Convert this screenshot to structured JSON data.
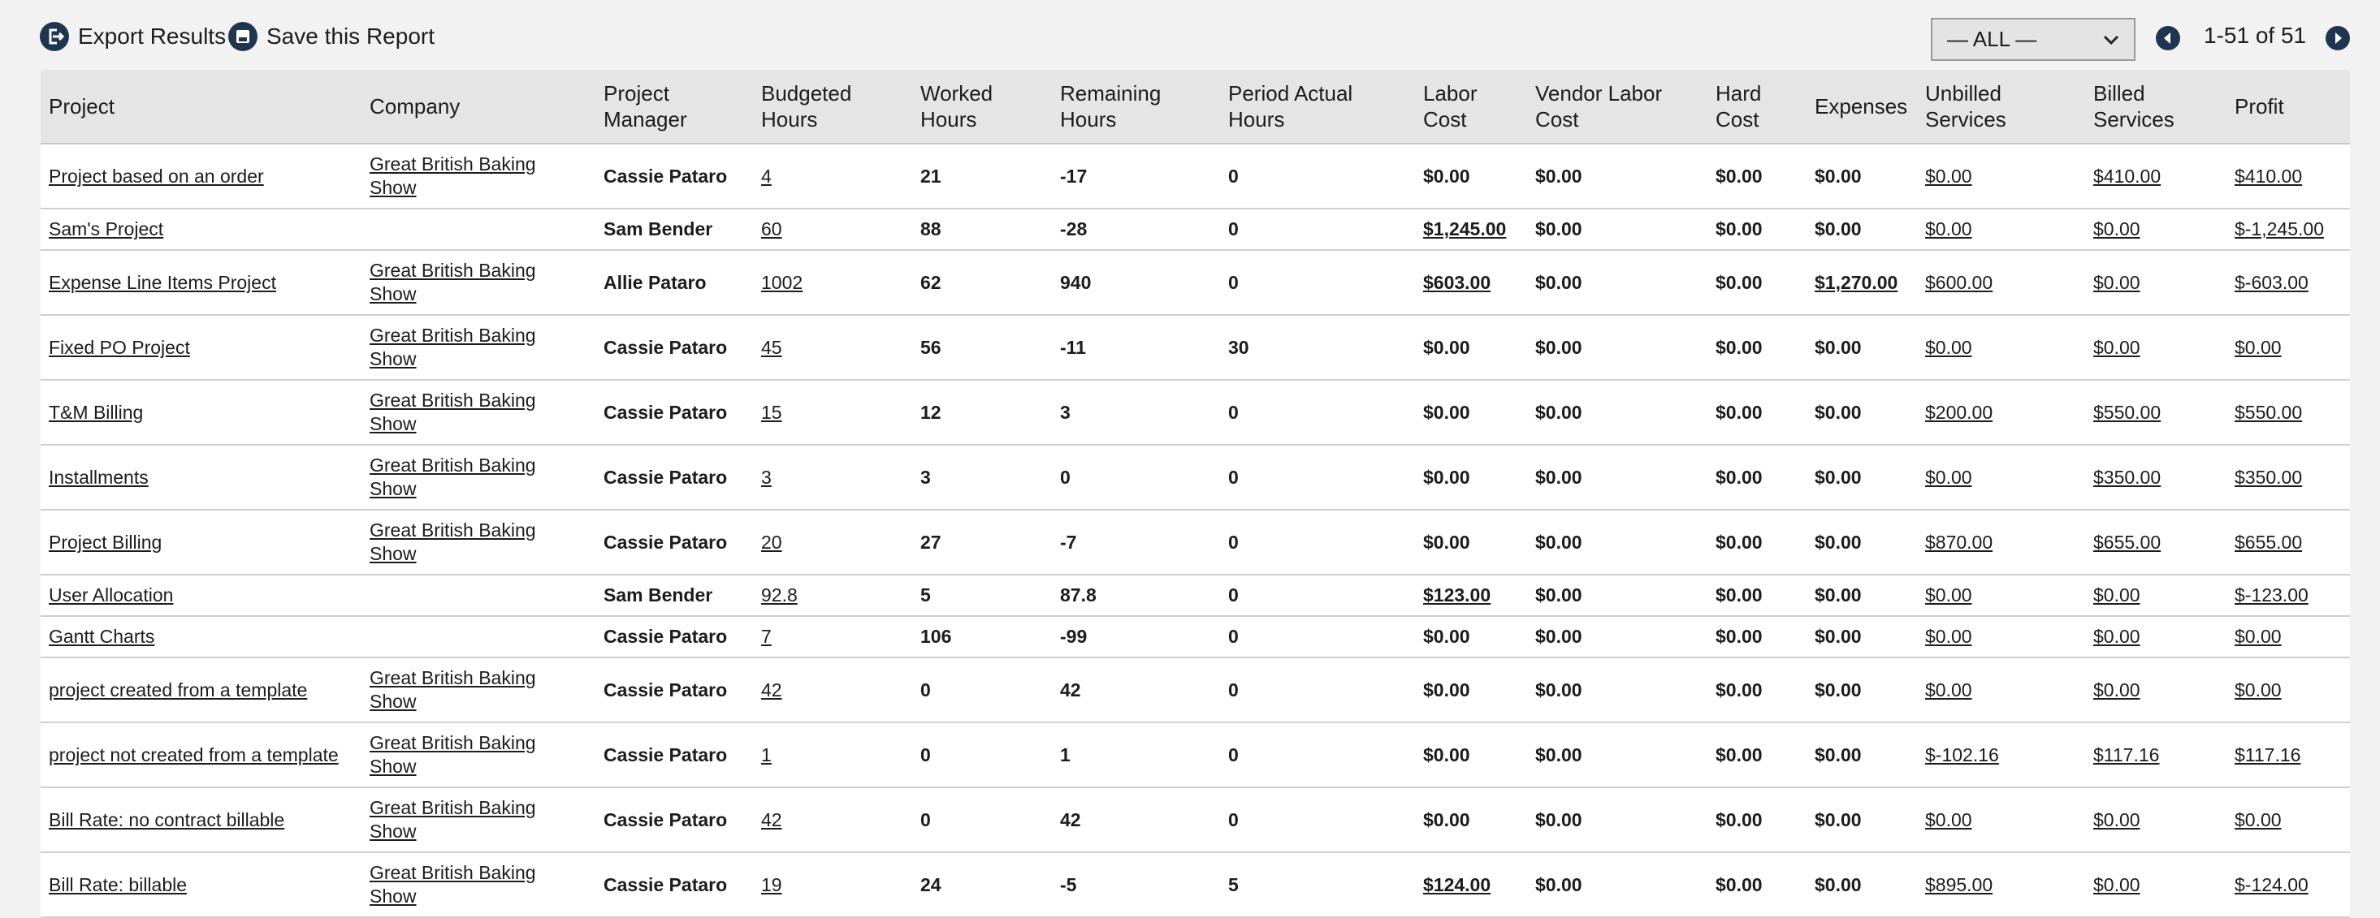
{
  "toolbar": {
    "export": "Export Results",
    "save": "Save this Report",
    "filter": "— ALL —",
    "pagination": "1-51 of 51"
  },
  "table": {
    "columns": [
      [
        "Project"
      ],
      [
        "Company"
      ],
      [
        "Project",
        "Manager"
      ],
      [
        "Budgeted",
        "Hours"
      ],
      [
        "Worked",
        "Hours"
      ],
      [
        "Remaining",
        "Hours"
      ],
      [
        "Period Actual",
        "Hours"
      ],
      [
        "Labor",
        "Cost"
      ],
      [
        "Vendor Labor",
        "Cost"
      ],
      [
        "Hard",
        "Cost"
      ],
      [
        "Expenses"
      ],
      [
        "Unbilled",
        "Services"
      ],
      [
        "Billed",
        "Services"
      ],
      [
        "Profit"
      ]
    ],
    "rows": [
      [
        "Project based on an order",
        "Great British Baking Show",
        "Cassie Pataro",
        4,
        21,
        -17,
        0,
        "$0.00",
        "$0.00",
        "$0.00",
        "$0.00",
        "$0.00",
        "$410.00",
        "$410.00"
      ],
      [
        "Sam's Project",
        null,
        "Sam Bender",
        60,
        88,
        -28,
        0,
        "$1,245.00",
        "$0.00",
        "$0.00",
        "$0.00",
        "$0.00",
        "$0.00",
        "$-1,245.00"
      ],
      [
        "Expense Line Items Project",
        "Great British Baking Show",
        "Allie Pataro",
        1002,
        62,
        940,
        0,
        "$603.00",
        "$0.00",
        "$0.00",
        "$1,270.00",
        "$600.00",
        "$0.00",
        "$-603.00"
      ],
      [
        "Fixed PO Project",
        "Great British Baking Show",
        "Cassie Pataro",
        45,
        56,
        -11,
        30,
        "$0.00",
        "$0.00",
        "$0.00",
        "$0.00",
        "$0.00",
        "$0.00",
        "$0.00"
      ],
      [
        "T&M Billing",
        "Great British Baking Show",
        "Cassie Pataro",
        15,
        12,
        3,
        0,
        "$0.00",
        "$0.00",
        "$0.00",
        "$0.00",
        "$200.00",
        "$550.00",
        "$550.00"
      ],
      [
        "Installments",
        "Great British Baking Show",
        "Cassie Pataro",
        3,
        3,
        0,
        0,
        "$0.00",
        "$0.00",
        "$0.00",
        "$0.00",
        "$0.00",
        "$350.00",
        "$350.00"
      ],
      [
        "Project Billing",
        "Great British Baking Show",
        "Cassie Pataro",
        20,
        27,
        -7,
        0,
        "$0.00",
        "$0.00",
        "$0.00",
        "$0.00",
        "$870.00",
        "$655.00",
        "$655.00"
      ],
      [
        "User Allocation",
        null,
        "Sam Bender",
        92.8,
        5,
        87.8,
        0,
        "$123.00",
        "$0.00",
        "$0.00",
        "$0.00",
        "$0.00",
        "$0.00",
        "$-123.00"
      ],
      [
        "Gantt Charts",
        null,
        "Cassie Pataro",
        7,
        106,
        -99,
        0,
        "$0.00",
        "$0.00",
        "$0.00",
        "$0.00",
        "$0.00",
        "$0.00",
        "$0.00"
      ],
      [
        "project created from a template",
        "Great British Baking Show",
        "Cassie Pataro",
        42,
        0,
        42,
        0,
        "$0.00",
        "$0.00",
        "$0.00",
        "$0.00",
        "$0.00",
        "$0.00",
        "$0.00"
      ],
      [
        "project not created from a template",
        "Great British Baking Show",
        "Cassie Pataro",
        1,
        0,
        1,
        0,
        "$0.00",
        "$0.00",
        "$0.00",
        "$0.00",
        "$-102.16",
        "$117.16",
        "$117.16"
      ],
      [
        "Bill Rate: no contract billable",
        "Great British Baking Show",
        "Cassie Pataro",
        42,
        0,
        42,
        0,
        "$0.00",
        "$0.00",
        "$0.00",
        "$0.00",
        "$0.00",
        "$0.00",
        "$0.00"
      ],
      [
        "Bill Rate: billable",
        "Great British Baking Show",
        "Cassie Pataro",
        19,
        24,
        -5,
        5,
        "$124.00",
        "$0.00",
        "$0.00",
        "$0.00",
        "$895.00",
        "$0.00",
        "$-124.00"
      ]
    ]
  }
}
